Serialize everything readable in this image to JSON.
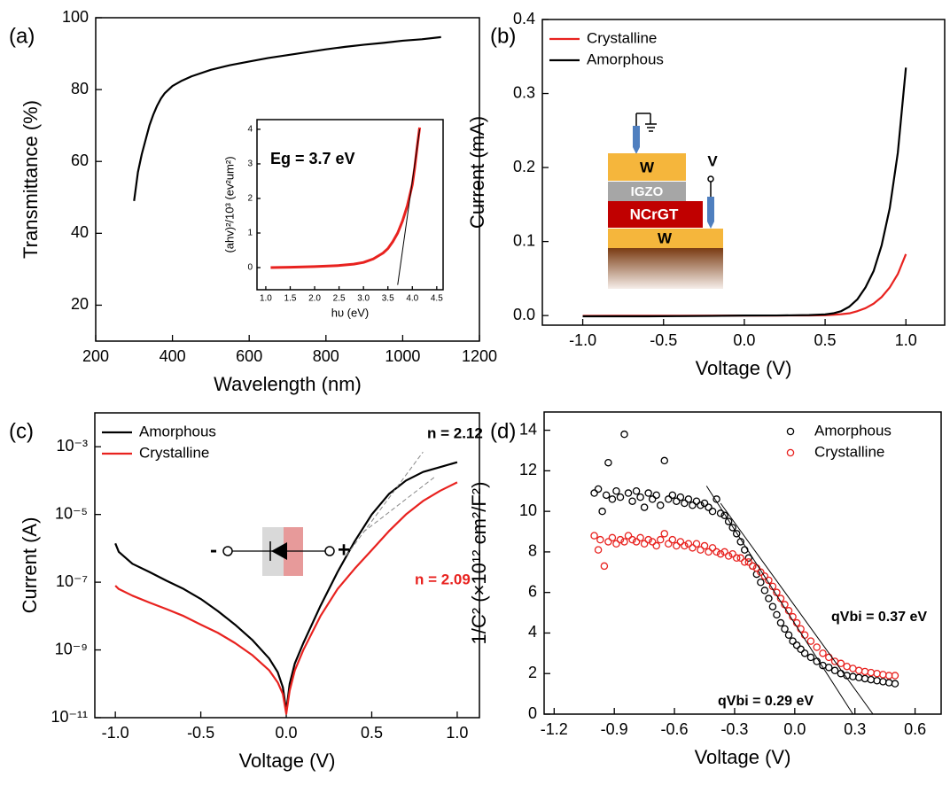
{
  "chart_data": [
    {
      "type": "line",
      "label": "(a)",
      "x_label": "Wavelength (nm)",
      "y_label": "Transmittance (%)",
      "x": [
        300,
        305,
        310,
        320,
        330,
        340,
        350,
        360,
        370,
        380,
        400,
        425,
        450,
        500,
        550,
        600,
        650,
        700,
        750,
        800,
        850,
        900,
        950,
        1000,
        1050,
        1100
      ],
      "values": [
        49,
        53,
        57,
        62,
        66,
        70,
        73,
        75.5,
        77.5,
        79,
        81,
        82.5,
        83.7,
        85.5,
        86.8,
        87.8,
        88.8,
        89.6,
        90.4,
        91.2,
        91.9,
        92.5,
        93,
        93.6,
        94,
        94.6
      ],
      "color": "#000000",
      "xlim": [
        200,
        1200
      ],
      "xticks": [
        200,
        400,
        600,
        800,
        1000,
        1200
      ],
      "ylim": [
        10,
        100
      ],
      "yticks": [
        20,
        40,
        60,
        80,
        100
      ],
      "inset": {
        "type": "line",
        "x_label": "hυ (eV)",
        "y_label": "(ahv)²/10³ (ev²um²)",
        "x": [
          1.1,
          1.5,
          2.0,
          2.5,
          2.8,
          3.0,
          3.2,
          3.4,
          3.5,
          3.6,
          3.7,
          3.8,
          3.9,
          4.0,
          4.05,
          4.1,
          4.15
        ],
        "values": [
          0,
          0.01,
          0.03,
          0.06,
          0.1,
          0.15,
          0.25,
          0.42,
          0.55,
          0.75,
          1.0,
          1.35,
          1.8,
          2.4,
          2.9,
          3.5,
          4.05
        ],
        "color": "#e8221f",
        "xlim": [
          0.82,
          4.63
        ],
        "xticks": [
          {
            "value": 1,
            "label": "1.0"
          },
          1.5,
          {
            "value": 2,
            "label": "2.0"
          },
          2.5,
          {
            "value": 3,
            "label": "3.0"
          },
          3.5,
          {
            "value": 4,
            "label": "4.0"
          },
          4.5
        ],
        "ylim": [
          -0.64,
          4.28
        ],
        "yticks": [
          0,
          1,
          2,
          3,
          4
        ],
        "fit_lines": [
          {
            "x": [
              3.7,
              4.15
            ],
            "y": [
              -0.5,
              4.0
            ],
            "color": "#000000",
            "style": "solid"
          }
        ],
        "annotations": [
          {
            "text": "Eg = 3.7 eV",
            "color": "#000000"
          }
        ]
      }
    },
    {
      "type": "line",
      "label": "(b)",
      "x_label": "Voltage (V)",
      "y_label": "Current (mA)",
      "x": [
        -1.0,
        -0.8,
        -0.6,
        -0.4,
        -0.2,
        0,
        0.2,
        0.4,
        0.5,
        0.55,
        0.6,
        0.65,
        0.7,
        0.75,
        0.8,
        0.85,
        0.9,
        0.95,
        1.0
      ],
      "series": [
        {
          "name": "Crystalline",
          "color": "#e8221f",
          "values": [
            -0.0004,
            -0.0003,
            -0.0003,
            -0.0002,
            -0.0001,
            0,
            0,
            0.0002,
            0.0005,
            0.001,
            0.0018,
            0.003,
            0.006,
            0.01,
            0.016,
            0.025,
            0.038,
            0.056,
            0.083
          ]
        },
        {
          "name": "Amorphous",
          "color": "#000000",
          "values": [
            -0.001,
            -0.001,
            -0.001,
            -0.0008,
            -0.0005,
            0,
            0.0001,
            0.0006,
            0.0015,
            0.003,
            0.006,
            0.012,
            0.022,
            0.038,
            0.06,
            0.095,
            0.145,
            0.22,
            0.335
          ]
        }
      ],
      "xlim": [
        -1.25,
        1.24
      ],
      "xticks": [
        {
          "value": -1,
          "label": "-1.0"
        },
        -0.5,
        {
          "value": 0,
          "label": "0.0"
        },
        0.5,
        {
          "value": 1,
          "label": "1.0"
        }
      ],
      "ylim": [
        -0.013,
        0.4
      ],
      "yticks": [
        {
          "value": 0,
          "label": "0.0"
        },
        0.1,
        0.2,
        0.3,
        0.4
      ],
      "legend": "upper left",
      "schematic_labels": [
        "W",
        "IGZO",
        "NCrGT",
        "W",
        "V"
      ]
    },
    {
      "type": "line",
      "label": "(c)",
      "x_label": "Voltage (V)",
      "y_label": "Current (A)",
      "yscale": "log",
      "x": [
        -1.0,
        -0.98,
        -0.9,
        -0.8,
        -0.7,
        -0.6,
        -0.5,
        -0.4,
        -0.3,
        -0.2,
        -0.1,
        -0.05,
        -0.02,
        0,
        0.02,
        0.05,
        0.1,
        0.2,
        0.3,
        0.4,
        0.5,
        0.6,
        0.7,
        0.8,
        0.9,
        1.0
      ],
      "series": [
        {
          "name": "Amorphous",
          "color": "#000000",
          "values": [
            1.4e-06,
            7.9e-07,
            3.5e-07,
            2e-07,
            1.1e-07,
            6.3e-08,
            3.2e-08,
            1.4e-08,
            5.6e-09,
            2e-09,
            5.6e-10,
            2.2e-10,
            7.9e-11,
            1.6e-11,
            1e-10,
            4e-10,
            1.6e-09,
            2e-08,
            2e-07,
            1.6e-06,
            1e-05,
            4e-05,
            0.0001,
            0.00018,
            0.00025,
            0.00035
          ]
        },
        {
          "name": "Crystalline",
          "color": "#e8221f",
          "values": [
            7.9e-08,
            6.3e-08,
            4e-08,
            2.5e-08,
            1.6e-08,
            1e-08,
            5.6e-09,
            3.2e-09,
            1.6e-09,
            7.1e-10,
            2.5e-10,
            1.1e-10,
            5e-11,
            1.3e-11,
            6.3e-11,
            2.5e-10,
            1e-09,
            1e-08,
            6.3e-08,
            2.5e-07,
            8.9e-07,
            3.2e-06,
            1e-05,
            2.5e-05,
            5e-05,
            8.9e-05
          ]
        }
      ],
      "xlim": [
        -1.12,
        1.13
      ],
      "xticks": [
        {
          "value": -1,
          "label": "-1.0"
        },
        -0.5,
        {
          "value": 0,
          "label": "0.0"
        },
        0.5,
        {
          "value": 1,
          "label": "1.0"
        }
      ],
      "ylim": [
        1e-11,
        0.01
      ],
      "yticks": [
        {
          "value": 1e-11,
          "label": "10⁻¹¹"
        },
        {
          "value": 1e-09,
          "label": "10⁻⁹"
        },
        {
          "value": 1e-07,
          "label": "10⁻⁷"
        },
        {
          "value": 1e-05,
          "label": "10⁻⁵"
        },
        {
          "value": 0.001,
          "label": "10⁻³"
        }
      ],
      "legend": "upper left",
      "fit_lines": [
        {
          "x": [
            0.35,
            0.8
          ],
          "y": [
            6e-07,
            0.0007
          ],
          "color": "#888888",
          "style": "dashed"
        },
        {
          "x": [
            0.45,
            0.87
          ],
          "y": [
            3e-06,
            0.00013
          ],
          "color": "#888888",
          "style": "dashed"
        }
      ],
      "annotations": [
        {
          "text": "n = 2.12",
          "color": "#000000"
        },
        {
          "text": "n = 2.09",
          "color": "#e8221f"
        }
      ],
      "symbol_labels": [
        "-",
        "+"
      ]
    },
    {
      "type": "scatter",
      "label": "(d)",
      "x_label": "Voltage (V)",
      "y_label": "1/C² (×10¹² cm²/F²)",
      "series": [
        {
          "name": "Amorphous",
          "color": "#000000",
          "x": [
            -1.0,
            -0.98,
            -0.96,
            -0.94,
            -0.93,
            -0.91,
            -0.89,
            -0.87,
            -0.85,
            -0.83,
            -0.81,
            -0.79,
            -0.77,
            -0.75,
            -0.73,
            -0.71,
            -0.69,
            -0.67,
            -0.65,
            -0.63,
            -0.61,
            -0.59,
            -0.57,
            -0.55,
            -0.53,
            -0.51,
            -0.49,
            -0.47,
            -0.45,
            -0.43,
            -0.41,
            -0.39,
            -0.37,
            -0.35,
            -0.33,
            -0.31,
            -0.29,
            -0.27,
            -0.25,
            -0.23,
            -0.21,
            -0.19,
            -0.17,
            -0.15,
            -0.13,
            -0.11,
            -0.09,
            -0.07,
            -0.05,
            -0.03,
            -0.01,
            0.01,
            0.03,
            0.05,
            0.08,
            0.11,
            0.14,
            0.17,
            0.2,
            0.23,
            0.26,
            0.29,
            0.32,
            0.35,
            0.38,
            0.41,
            0.44,
            0.47,
            0.5
          ],
          "values": [
            10.9,
            11.1,
            10.0,
            10.8,
            12.4,
            10.6,
            11.0,
            10.7,
            13.8,
            10.9,
            10.5,
            11.0,
            10.7,
            10.2,
            10.9,
            10.6,
            10.8,
            10.3,
            12.5,
            10.6,
            10.8,
            10.5,
            10.7,
            10.4,
            10.6,
            10.3,
            10.5,
            10.3,
            10.4,
            10.2,
            10.0,
            10.6,
            9.9,
            9.8,
            9.5,
            9.2,
            8.9,
            8.5,
            8.1,
            7.7,
            7.3,
            6.9,
            6.5,
            6.1,
            5.7,
            5.3,
            4.9,
            4.5,
            4.2,
            3.9,
            3.6,
            3.4,
            3.2,
            3.0,
            2.8,
            2.6,
            2.4,
            2.3,
            2.15,
            2.0,
            1.9,
            1.85,
            1.8,
            1.75,
            1.7,
            1.65,
            1.6,
            1.55,
            1.5
          ]
        },
        {
          "name": "Crystalline",
          "color": "#e8221f",
          "x": [
            -1.0,
            -0.98,
            -0.97,
            -0.95,
            -0.93,
            -0.91,
            -0.89,
            -0.87,
            -0.85,
            -0.83,
            -0.81,
            -0.79,
            -0.77,
            -0.75,
            -0.73,
            -0.71,
            -0.69,
            -0.67,
            -0.65,
            -0.63,
            -0.61,
            -0.59,
            -0.57,
            -0.55,
            -0.53,
            -0.51,
            -0.49,
            -0.47,
            -0.45,
            -0.43,
            -0.41,
            -0.39,
            -0.37,
            -0.35,
            -0.33,
            -0.31,
            -0.29,
            -0.27,
            -0.25,
            -0.23,
            -0.21,
            -0.19,
            -0.17,
            -0.15,
            -0.13,
            -0.11,
            -0.09,
            -0.07,
            -0.05,
            -0.03,
            -0.01,
            0.01,
            0.03,
            0.05,
            0.08,
            0.11,
            0.14,
            0.17,
            0.2,
            0.23,
            0.26,
            0.29,
            0.32,
            0.35,
            0.38,
            0.41,
            0.44,
            0.47,
            0.5
          ],
          "values": [
            8.8,
            8.1,
            8.6,
            7.3,
            8.5,
            8.7,
            8.4,
            8.6,
            8.5,
            8.8,
            8.6,
            8.5,
            8.7,
            8.4,
            8.6,
            8.5,
            8.3,
            8.6,
            8.9,
            8.4,
            8.6,
            8.3,
            8.5,
            8.3,
            8.4,
            8.2,
            8.4,
            8.1,
            8.3,
            8.0,
            8.2,
            8.0,
            7.9,
            8.0,
            7.8,
            7.9,
            7.7,
            7.7,
            7.5,
            7.5,
            7.3,
            7.2,
            7.0,
            6.8,
            6.6,
            6.3,
            6.0,
            5.7,
            5.4,
            5.1,
            4.8,
            4.5,
            4.2,
            3.9,
            3.6,
            3.3,
            3.0,
            2.8,
            2.6,
            2.5,
            2.35,
            2.25,
            2.15,
            2.1,
            2.05,
            2.0,
            1.95,
            1.9,
            1.9
          ]
        }
      ],
      "xlim": [
        -1.25,
        0.73
      ],
      "xticks": [
        -1.2,
        -0.9,
        -0.6,
        -0.3,
        {
          "value": 0,
          "label": "0.0"
        },
        0.3,
        0.6
      ],
      "ylim": [
        0,
        14.9
      ],
      "yticks": [
        0,
        2,
        4,
        6,
        8,
        10,
        12,
        14
      ],
      "legend": "upper right",
      "fit_lines": [
        {
          "x": [
            -0.44,
            0.29
          ],
          "y": [
            11.25,
            0
          ],
          "color": "#000000",
          "style": "solid"
        },
        {
          "x": [
            -0.37,
            0.39
          ],
          "y": [
            10.4,
            0
          ],
          "color": "#000000",
          "style": "solid"
        }
      ],
      "annotations": [
        {
          "text": "qVbi = 0.37 eV",
          "color": "#000000"
        },
        {
          "text": "qVbi = 0.29 eV",
          "color": "#000000"
        }
      ]
    }
  ]
}
